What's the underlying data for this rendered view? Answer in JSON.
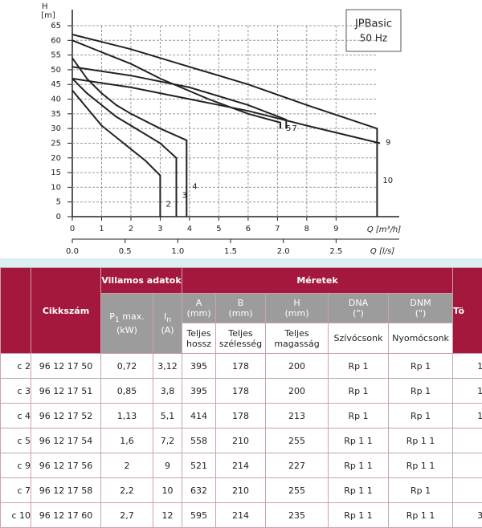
{
  "chart_data": {
    "type": "line",
    "y_label_top": "H",
    "y_unit": "[m]",
    "box_title": "JPBasic",
    "box_subtitle": "50 Hz",
    "x_label": "Q [m³/h]",
    "x2_label": "Q [l/s]",
    "xlim": [
      0,
      10.8
    ],
    "xticks": [
      0,
      1,
      2,
      3,
      4,
      5,
      6,
      7,
      8,
      9
    ],
    "x2lim": [
      0,
      3
    ],
    "x2ticks": [
      {
        "value": 0,
        "label": "0.0"
      },
      0.5,
      {
        "value": 1,
        "label": "1.0"
      },
      1.5,
      {
        "value": 2,
        "label": "2.0"
      },
      2.5
    ],
    "ylim": [
      0,
      65
    ],
    "yticks": [
      0,
      5,
      10,
      15,
      20,
      25,
      30,
      35,
      40,
      45,
      50,
      55,
      60,
      65
    ],
    "grid": true,
    "series": [
      {
        "name": "2",
        "color": "#222222",
        "x": [
          0,
          0.5,
          1,
          1.5,
          2,
          2.5,
          3,
          3
        ],
        "values": [
          43,
          37,
          31,
          27,
          23,
          19,
          14,
          0
        ]
      },
      {
        "name": "3",
        "color": "#222222",
        "x": [
          0,
          0.5,
          1,
          1.5,
          2,
          2.5,
          3,
          3.55,
          3.55
        ],
        "values": [
          47,
          42,
          38,
          34,
          31,
          28,
          25,
          20,
          0
        ]
      },
      {
        "name": "4",
        "color": "#222222",
        "x": [
          0,
          0.5,
          1,
          1.5,
          2,
          3,
          3.9,
          3.9
        ],
        "values": [
          54,
          47,
          42,
          38,
          35,
          30,
          26,
          0
        ]
      },
      {
        "name": "5",
        "color": "#222222",
        "x": [
          0,
          1,
          2,
          3,
          4.65,
          6,
          7.1,
          7.1
        ],
        "values": [
          60,
          56,
          52,
          47,
          40,
          35,
          32,
          30
        ]
      },
      {
        "name": "7",
        "color": "#222222",
        "x": [
          0,
          2,
          4,
          6,
          7.3,
          7.3
        ],
        "values": [
          51,
          48,
          44,
          38,
          33,
          30
        ]
      },
      {
        "name": "9",
        "color": "#222222",
        "x": [
          0,
          2,
          4,
          6,
          8,
          10.5
        ],
        "values": [
          47,
          44,
          40,
          36,
          31,
          25
        ]
      },
      {
        "name": "10",
        "color": "#222222",
        "x": [
          0,
          2,
          4,
          6,
          8,
          10.4,
          10.4
        ],
        "values": [
          62,
          57,
          51,
          45,
          38,
          30,
          0
        ]
      }
    ]
  },
  "table": {
    "header": {
      "article": "Cikkszám",
      "electrical": "Villamos adatok",
      "dimensions": "Méretek",
      "last": "Tö",
      "p1": {
        "symbol": "P",
        "sub": "1",
        "rest": "max.",
        "unit": "(kW)"
      },
      "in": {
        "symbol": "I",
        "sub": "n",
        "unit": "(A)"
      },
      "dims": [
        {
          "name": "A",
          "unit": "(mm)",
          "desc": "Teljes hossz"
        },
        {
          "name": "B",
          "unit": "(mm)",
          "desc": "Teljes szélesség"
        },
        {
          "name": "H",
          "unit": "(mm)",
          "desc": "Teljes magasság"
        },
        {
          "name": "DNA",
          "unit": "(\")",
          "desc": "Szívócsonk"
        },
        {
          "name": "DNM",
          "unit": "(\")",
          "desc": "Nyomócsonk"
        }
      ]
    },
    "rows": [
      [
        "c 2",
        "96 12 17 50",
        "0,72",
        "3,12",
        "395",
        "178",
        "200",
        "Rp 1",
        "Rp 1",
        "1"
      ],
      [
        "c 3",
        "96 12 17 51",
        "0,85",
        "3,8",
        "395",
        "178",
        "200",
        "Rp 1",
        "Rp 1",
        "1"
      ],
      [
        "c 4",
        "96 12 17 52",
        "1,13",
        "5,1",
        "414",
        "178",
        "213",
        "Rp 1",
        "Rp 1",
        "1"
      ],
      [
        "c 5",
        "96 12 17 54",
        "1,6",
        "7,2",
        "558",
        "210",
        "255",
        "Rp 1 1",
        "Rp 1 1",
        null
      ],
      [
        "c 9",
        "96 12 17 56",
        "2",
        "9",
        "521",
        "214",
        "227",
        "Rp 1 1",
        "Rp 1 1",
        null
      ],
      [
        "c 7",
        "96 12 17 58",
        "2,2",
        "10",
        "632",
        "210",
        "255",
        "Rp 1 1",
        "Rp 1",
        null
      ],
      [
        "c 10",
        "96 12 17 60",
        "2,7",
        "12",
        "595",
        "214",
        "235",
        "Rp 1 1",
        "Rp 1 1",
        "3"
      ]
    ]
  }
}
